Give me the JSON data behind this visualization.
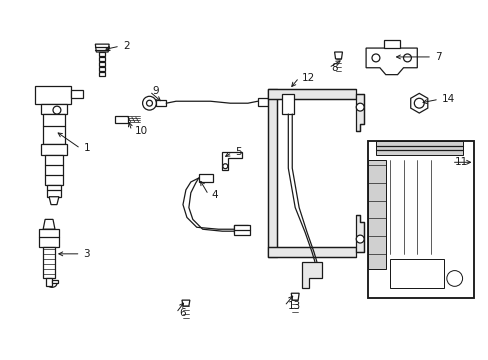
{
  "background_color": "#ffffff",
  "line_color": "#1a1a1a",
  "fig_width": 4.89,
  "fig_height": 3.6,
  "dpi": 100,
  "border_color": "#cccccc",
  "gray_fill": "#b0b0b0",
  "label_fontsize": 7.5,
  "arrow_lw": 0.7,
  "component_lw": 0.9
}
